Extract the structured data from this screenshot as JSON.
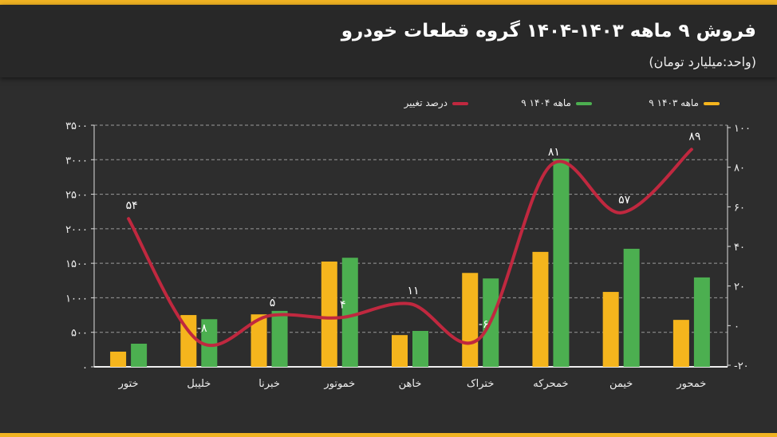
{
  "header": {
    "title": "فروش ۹ ماهه ۱۴۰۳-۱۴۰۴ گروه قطعات خودرو",
    "subtitle": "(واحد:میلیارد تومان)"
  },
  "chart_data": {
    "type": "bar",
    "title": "فروش ۹ ماهه ۱۴۰۳-۱۴۰۴ گروه قطعات خودرو",
    "categories": [
      "ختور",
      "خلیبل",
      "خبرنا",
      "خموتور",
      "خاهن",
      "ختراک",
      "خمحرکه",
      "خیمن",
      "خمحور"
    ],
    "series": [
      {
        "name": "۹ ماهه ۱۴۰۳",
        "type": "bar",
        "axis": "left",
        "color": "#f5b51d",
        "values": [
          220,
          750,
          760,
          1525,
          460,
          1360,
          1665,
          1085,
          680
        ]
      },
      {
        "name": "۹ ماهه ۱۴۰۴",
        "type": "bar",
        "axis": "left",
        "color": "#4caf50",
        "values": [
          335,
          690,
          810,
          1580,
          520,
          1280,
          3015,
          1710,
          1295
        ]
      },
      {
        "name": "درصد تغییر",
        "type": "line",
        "axis": "right",
        "color": "#c0283f",
        "values": [
          54,
          -8,
          5,
          4,
          11,
          -6,
          81,
          57,
          89
        ],
        "labels": [
          "۵۴",
          "-۸",
          "۵",
          "۴",
          "۱۱",
          "-۶",
          "۸۱",
          "۵۷",
          "۸۹"
        ]
      }
    ],
    "ylim": [
      0,
      3500
    ],
    "y_ticks": [
      0,
      500,
      1000,
      1500,
      2000,
      2500,
      3000,
      3500
    ],
    "y_tick_labels": [
      "۰",
      "۵۰۰",
      "۱۰۰۰",
      "۱۵۰۰",
      "۲۰۰۰",
      "۲۵۰۰",
      "۳۰۰۰",
      "۳۵۰۰"
    ],
    "y2lim": [
      -20,
      100
    ],
    "y2_ticks": [
      -20,
      0,
      20,
      40,
      60,
      80,
      100
    ],
    "y2_tick_labels": [
      "-۲۰",
      "۰",
      "۲۰",
      "۴۰",
      "۶۰",
      "۸۰",
      "۱۰۰"
    ],
    "legend_position": "top-right",
    "grid": true
  }
}
